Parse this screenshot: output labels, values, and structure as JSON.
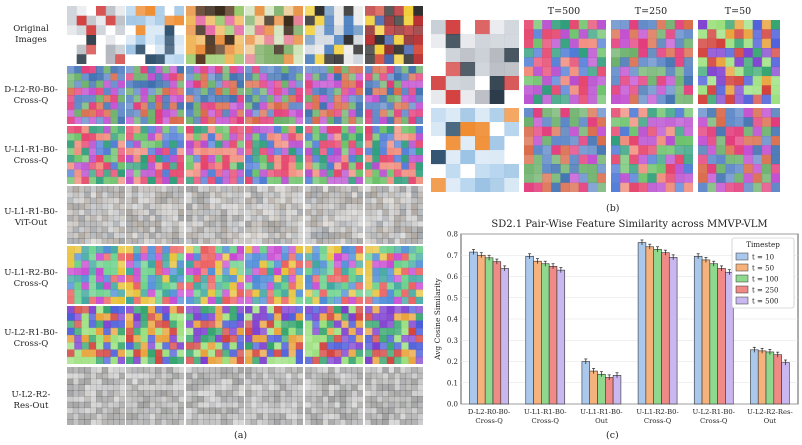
{
  "panel_a": {
    "caption": "(a)",
    "row_labels": [
      "Original\nImages",
      "D-L2-R0-B0-\nCross-Q",
      "U-L1-R1-B0-\nCross-Q",
      "U-L1-R1-B0-\nViT-Out",
      "U-L1-R2-B0-\nCross-Q",
      "U-L2-R1-B0-\nCross-Q",
      "U-L2-R2-\nRes-Out"
    ]
  },
  "panel_b": {
    "caption": "(b)",
    "timestep_labels": [
      "T=500",
      "T=250",
      "T=50"
    ]
  },
  "chart_data": {
    "type": "bar",
    "title": "SD2.1 Pair-Wise Feature Similarity across MMVP-VLM",
    "ylabel": "Avg Cosine Similarity",
    "xlabel": "",
    "ylim": [
      0,
      0.8
    ],
    "yticks": [
      "0.0",
      "0.1",
      "0.2",
      "0.3",
      "0.4",
      "0.5",
      "0.6",
      "0.7",
      "0.8"
    ],
    "categories": [
      "D-L2-R0-B0-\nCross-Q",
      "U-L1-R1-B0-\nCross-Q",
      "U-L1-R1-B0-\nOut",
      "U-L1-R2-B0-\nCross-Q",
      "U-L2-R1-B0-\nCross-Q",
      "U-L2-R2-Res-\nOut"
    ],
    "legend_title": "Timestep",
    "legend_position": "top-right",
    "series": [
      {
        "name": "t = 10",
        "color": "#a9c8ec",
        "values": [
          0.715,
          0.695,
          0.2,
          0.76,
          0.695,
          0.255
        ]
      },
      {
        "name": "t = 50",
        "color": "#f6b27d",
        "values": [
          0.7,
          0.672,
          0.155,
          0.74,
          0.678,
          0.25
        ]
      },
      {
        "name": "t = 100",
        "color": "#8fd98f",
        "values": [
          0.688,
          0.66,
          0.14,
          0.728,
          0.66,
          0.245
        ]
      },
      {
        "name": "t = 250",
        "color": "#ef8a86",
        "values": [
          0.67,
          0.648,
          0.125,
          0.712,
          0.638,
          0.232
        ]
      },
      {
        "name": "t = 500",
        "color": "#c9b7ef",
        "values": [
          0.638,
          0.63,
          0.135,
          0.69,
          0.62,
          0.195
        ]
      }
    ],
    "caption": "(c)"
  }
}
